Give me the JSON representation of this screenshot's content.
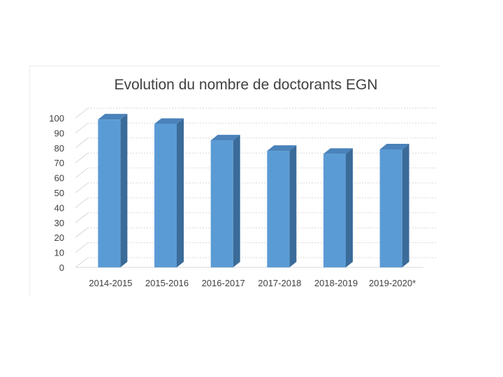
{
  "chart_data": {
    "type": "bar",
    "title": "Evolution du nombre de doctorants EGN",
    "categories": [
      "2014-2015",
      "2015-2016",
      "2016-2017",
      "2017-2018",
      "2018-2019",
      "2019-2020*"
    ],
    "values": [
      99,
      96,
      85,
      78,
      76,
      79
    ],
    "ylim": [
      0,
      100
    ],
    "yticks": [
      0,
      10,
      20,
      30,
      40,
      50,
      60,
      70,
      80,
      90,
      100
    ],
    "xlabel": "",
    "ylabel": "",
    "grid": true,
    "legend": "none",
    "style": "3d-column",
    "colors": {
      "bar_front": "#5b9bd5",
      "bar_side": "#3a6b99",
      "bar_top": "#4a82ba",
      "grid": "#d9d9d9",
      "text": "#404040"
    }
  }
}
